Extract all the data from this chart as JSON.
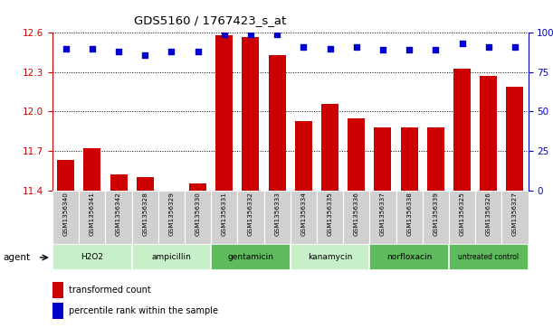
{
  "title": "GDS5160 / 1767423_s_at",
  "samples": [
    "GSM1356340",
    "GSM1356341",
    "GSM1356342",
    "GSM1356328",
    "GSM1356329",
    "GSM1356330",
    "GSM1356331",
    "GSM1356332",
    "GSM1356333",
    "GSM1356334",
    "GSM1356335",
    "GSM1356336",
    "GSM1356337",
    "GSM1356338",
    "GSM1356339",
    "GSM1356325",
    "GSM1356326",
    "GSM1356327"
  ],
  "transformed_count": [
    11.63,
    11.72,
    11.52,
    11.5,
    11.4,
    11.45,
    12.58,
    12.57,
    12.43,
    11.93,
    12.06,
    11.95,
    11.88,
    11.88,
    11.88,
    12.33,
    12.27,
    12.19
  ],
  "percentile_rank": [
    90,
    90,
    88,
    86,
    88,
    88,
    99,
    99,
    99,
    91,
    90,
    91,
    89,
    89,
    89,
    93,
    91,
    91
  ],
  "groups": [
    {
      "name": "H2O2",
      "start": 0,
      "end": 3,
      "color": "#c8f0c8"
    },
    {
      "name": "ampicillin",
      "start": 3,
      "end": 6,
      "color": "#c8f0c8"
    },
    {
      "name": "gentamicin",
      "start": 6,
      "end": 9,
      "color": "#5dba5d"
    },
    {
      "name": "kanamycin",
      "start": 9,
      "end": 12,
      "color": "#c8f0c8"
    },
    {
      "name": "norfloxacin",
      "start": 12,
      "end": 15,
      "color": "#5dba5d"
    },
    {
      "name": "untreated control",
      "start": 15,
      "end": 18,
      "color": "#5dba5d"
    }
  ],
  "ylim_left": [
    11.4,
    12.6
  ],
  "ylim_right": [
    0,
    100
  ],
  "yticks_left": [
    11.4,
    11.7,
    12.0,
    12.3,
    12.6
  ],
  "yticks_right": [
    0,
    25,
    50,
    75,
    100
  ],
  "ytick_labels_right": [
    "0",
    "25",
    "50",
    "75",
    "100%"
  ],
  "bar_color": "#cc0000",
  "dot_color": "#0000cc",
  "left_tick_color": "#cc0000",
  "right_tick_color": "#0000cc",
  "grid_color": "#000000",
  "sample_bg_color": "#d0d0d0",
  "xlabel_agent": "agent",
  "legend_bar": "transformed count",
  "legend_dot": "percentile rank within the sample"
}
